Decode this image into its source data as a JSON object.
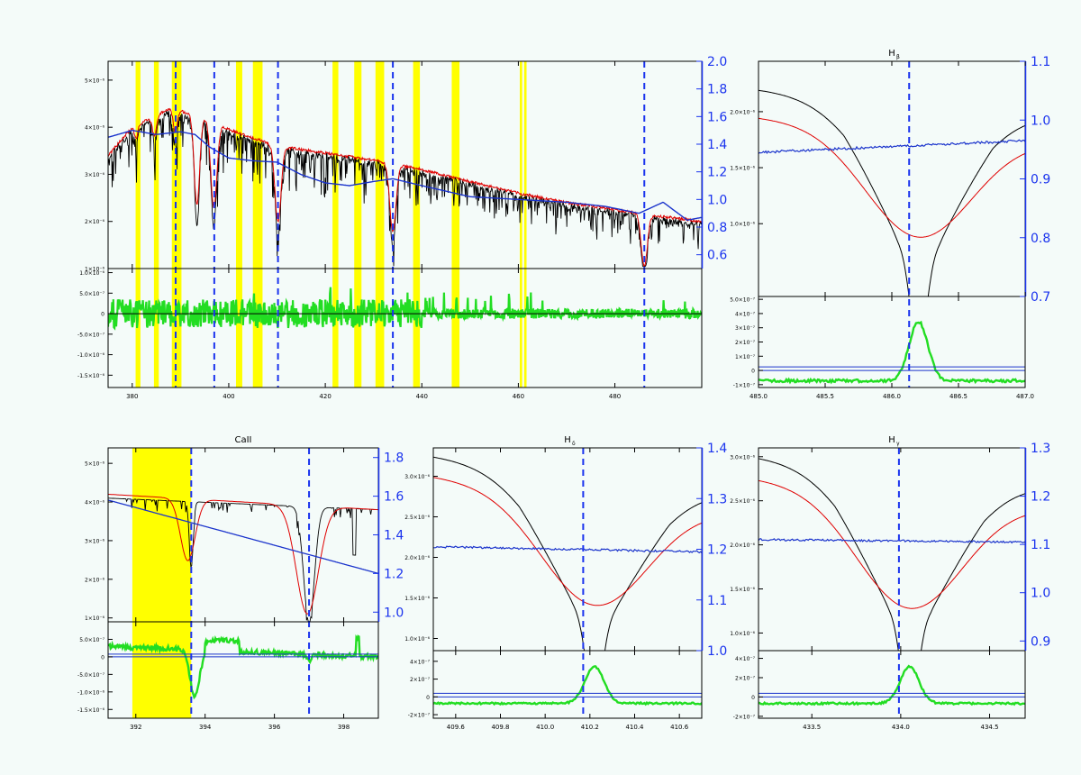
{
  "figure": {
    "background": "#f4fbf9",
    "colors": {
      "observed": "#000000",
      "model": "#e00000",
      "ratio": "#1a33cc",
      "residual": "#22dd22",
      "band": "#ffff00",
      "marker": "#1a33ee",
      "axis": "#000000"
    }
  },
  "chart_data": [
    {
      "id": "overview",
      "type": "line",
      "title": "",
      "xlim": [
        375,
        498
      ],
      "xticks": [
        "380",
        "400",
        "420",
        "440",
        "460",
        "480"
      ],
      "xtick_values": [
        380,
        400,
        420,
        440,
        460,
        480
      ],
      "top": {
        "ylim": [
          1e-06,
          5.4e-06
        ],
        "yticks": [
          "5×10⁻⁶",
          "4×10⁻⁶",
          "3×10⁻⁶",
          "2×10⁻⁶",
          "1×10⁻⁶"
        ],
        "ytick_values": [
          5e-06,
          4e-06,
          3e-06,
          2e-06,
          1e-06
        ],
        "ylim_right": [
          0.5,
          2.0
        ],
        "yticks_right": [
          "2.0",
          "1.8",
          "1.6",
          "1.4",
          "1.2",
          "1.0",
          "0.8",
          "0.6"
        ],
        "ytick_values_right": [
          2.0,
          1.8,
          1.6,
          1.4,
          1.2,
          1.0,
          0.8,
          0.6
        ]
      },
      "bottom": {
        "ylim": [
          -1.8e-06,
          1.1e-06
        ],
        "yticks": [
          "1.0×10⁻⁶",
          "5.0×10⁻⁷",
          "0",
          "-5.0×10⁻⁷",
          "-1.0×10⁻⁶",
          "-1.5×10⁻⁶"
        ],
        "ytick_values": [
          1e-06,
          5e-07,
          0,
          -5e-07,
          -1e-06,
          -1.5e-06
        ]
      },
      "bands": [
        [
          380.7,
          381.7
        ],
        [
          384.5,
          385.5
        ],
        [
          388.2,
          390.2
        ],
        [
          401.5,
          402.8
        ],
        [
          405,
          407
        ],
        [
          421.5,
          422.7
        ],
        [
          426,
          427.5
        ],
        [
          430.4,
          432.2
        ],
        [
          438.2,
          439.6
        ],
        [
          446.2,
          447.8
        ],
        [
          460.3,
          460.8
        ],
        [
          461.2,
          461.7
        ]
      ],
      "markers": [
        389.0,
        397.0,
        410.2,
        434.0,
        486.1
      ],
      "lines": [
        {
          "x0": 380.8,
          "depth": 2.8e-07,
          "width": 0.5
        },
        {
          "x0": 384.6,
          "depth": 4e-07,
          "width": 0.6
        },
        {
          "x0": 388.9,
          "depth": 4.8e-07,
          "width": 0.6
        },
        {
          "x0": 393.4,
          "depth": 1.9e-06,
          "width": 0.8
        },
        {
          "x0": 396.9,
          "depth": 1.8e-06,
          "width": 0.9
        },
        {
          "x0": 410.2,
          "depth": 1.6e-06,
          "width": 0.9
        },
        {
          "x0": 434.0,
          "depth": 1.45e-06,
          "width": 0.9
        },
        {
          "x0": 486.1,
          "depth": 1.1e-06,
          "width": 0.9
        }
      ],
      "continuum_pts": [
        [
          375,
          3.4e-06
        ],
        [
          380,
          4e-06
        ],
        [
          388,
          4.4e-06
        ],
        [
          395,
          4.2e-06
        ],
        [
          400,
          3.95e-06
        ],
        [
          410,
          3.6e-06
        ],
        [
          420,
          3.45e-06
        ],
        [
          430,
          3.3e-06
        ],
        [
          440,
          3.1e-06
        ],
        [
          450,
          2.85e-06
        ],
        [
          460,
          2.6e-06
        ],
        [
          470,
          2.4e-06
        ],
        [
          480,
          2.25e-06
        ],
        [
          490,
          2.1e-06
        ],
        [
          498,
          2e-06
        ]
      ],
      "ratio_pts": [
        [
          375,
          1.45
        ],
        [
          380,
          1.5
        ],
        [
          385,
          1.47
        ],
        [
          390,
          1.49
        ],
        [
          393,
          1.47
        ],
        [
          396,
          1.38
        ],
        [
          400,
          1.3
        ],
        [
          405,
          1.28
        ],
        [
          410,
          1.27
        ],
        [
          415,
          1.18
        ],
        [
          420,
          1.12
        ],
        [
          425,
          1.1
        ],
        [
          430,
          1.13
        ],
        [
          434,
          1.15
        ],
        [
          440,
          1.1
        ],
        [
          450,
          1.02
        ],
        [
          460,
          1.0
        ],
        [
          470,
          0.98
        ],
        [
          478,
          0.95
        ],
        [
          485,
          0.9
        ],
        [
          490,
          0.98
        ],
        [
          495,
          0.85
        ],
        [
          498,
          0.87
        ]
      ]
    },
    {
      "id": "hbeta",
      "type": "line",
      "title": "H",
      "title_sub": "β",
      "xlim": [
        485.0,
        487.0
      ],
      "xticks": [
        "485.0",
        "485.5",
        "486.0",
        "486.5",
        "487.0"
      ],
      "xtick_values": [
        485.0,
        485.5,
        486.0,
        486.5,
        487.0
      ],
      "top": {
        "ylim": [
          3.5e-07,
          2.45e-06
        ],
        "yticks": [
          "2.0×10⁻⁶",
          "1.5×10⁻⁶",
          "1.0×10⁻⁶"
        ],
        "ytick_values": [
          2e-06,
          1.5e-06,
          1e-06
        ],
        "ylim_right": [
          0.7,
          1.1
        ],
        "yticks_right": [
          "1.1",
          "1.0",
          "0.9",
          "0.8",
          "0.7"
        ],
        "ytick_values_right": [
          1.1,
          1.0,
          0.9,
          0.8,
          0.7
        ]
      },
      "bottom": {
        "ylim": [
          -1.2e-07,
          5.2e-07
        ],
        "yticks": [
          "5.0×10⁻⁷",
          "4×10⁻⁷",
          "3×10⁻⁷",
          "2×10⁻⁷",
          "1×10⁻⁷",
          "0",
          "-1×10⁻⁷"
        ],
        "ytick_values": [
          5e-07,
          4e-07,
          3e-07,
          2e-07,
          1e-07,
          0,
          -1e-07
        ]
      },
      "markers": [
        486.13
      ],
      "line_center": 486.2,
      "continuum": [
        1.95e-06,
        1.75e-06
      ],
      "obs_depth": 1.5e-06,
      "obs_width": 0.28,
      "model_depth": 9.5e-07,
      "model_width": 0.55,
      "ratio": [
        0.945,
        0.965
      ]
    },
    {
      "id": "caii",
      "type": "line",
      "title": "CaII",
      "xlim": [
        391.2,
        399.0
      ],
      "xticks": [
        "392",
        "394",
        "396",
        "398"
      ],
      "xtick_values": [
        392,
        394,
        396,
        398
      ],
      "top": {
        "ylim": [
          9e-07,
          5.4e-06
        ],
        "yticks": [
          "5×10⁻⁶",
          "4×10⁻⁶",
          "3×10⁻⁶",
          "2×10⁻⁶",
          "1×10⁻⁶"
        ],
        "ytick_values": [
          5e-06,
          4e-06,
          3e-06,
          2e-06,
          1e-06
        ],
        "ylim_right": [
          0.95,
          1.85
        ],
        "yticks_right": [
          "1.8",
          "1.6",
          "1.4",
          "1.2",
          "1.0"
        ],
        "ytick_values_right": [
          1.8,
          1.6,
          1.4,
          1.2,
          1.0
        ]
      },
      "bottom": {
        "ylim": [
          -1.75e-06,
          1e-06
        ],
        "yticks": [
          "5.0×10⁻⁷",
          "0",
          "-5.0×10⁻⁷",
          "-1.0×10⁻⁶",
          "-1.5×10⁻⁶"
        ],
        "ytick_values": [
          5e-07,
          0,
          -5e-07,
          -1e-06,
          -1.5e-06
        ]
      },
      "bands": [
        [
          391.9,
          393.6
        ]
      ],
      "markers": [
        393.6,
        397.0
      ],
      "ratio": [
        1.58,
        1.2
      ]
    },
    {
      "id": "hdelta",
      "type": "line",
      "title": "H",
      "title_sub": "δ",
      "xlim": [
        409.5,
        410.7
      ],
      "xticks": [
        "409.6",
        "409.8",
        "410.0",
        "410.2",
        "410.4",
        "410.6"
      ],
      "xtick_values": [
        409.6,
        409.8,
        410.0,
        410.2,
        410.4,
        410.6
      ],
      "top": {
        "ylim": [
          8.5e-07,
          3.35e-06
        ],
        "yticks": [
          "3.0×10⁻⁶",
          "2.5×10⁻⁶",
          "2.0×10⁻⁶",
          "1.5×10⁻⁶",
          "1.0×10⁻⁶"
        ],
        "ytick_values": [
          3e-06,
          2.5e-06,
          2e-06,
          1.5e-06,
          1e-06
        ],
        "ylim_right": [
          1.0,
          1.4
        ],
        "yticks_right": [
          "1.4",
          "1.3",
          "1.2",
          "1.1",
          "1.0"
        ],
        "ytick_values_right": [
          1.4,
          1.3,
          1.2,
          1.1,
          1.0
        ]
      },
      "bottom": {
        "ylim": [
          -2.4e-07,
          5.2e-07
        ],
        "yticks": [
          "4×10⁻⁷",
          "2×10⁻⁷",
          "0",
          "-2×10⁻⁷"
        ],
        "ytick_values": [
          4e-07,
          2e-07,
          0,
          -2e-07
        ]
      },
      "markers": [
        410.17
      ],
      "line_center": 410.22,
      "continuum": [
        3e-06,
        2.6e-06
      ],
      "obs_depth": 1.9e-06,
      "obs_width": 0.22,
      "model_depth": 1.35e-06,
      "model_width": 0.35,
      "ratio": [
        1.205,
        1.195
      ]
    },
    {
      "id": "hgamma",
      "type": "line",
      "title": "H",
      "title_sub": "γ",
      "xlim": [
        433.2,
        434.7
      ],
      "xticks": [
        "433.5",
        "434.0",
        "434.5"
      ],
      "xtick_values": [
        433.5,
        434.0,
        434.5
      ],
      "top": {
        "ylim": [
          8e-07,
          3.1e-06
        ],
        "yticks": [
          "3.0×10⁻⁶",
          "2.5×10⁻⁶",
          "2.0×10⁻⁶",
          "1.5×10⁻⁶",
          "1.0×10⁻⁶"
        ],
        "ytick_values": [
          3e-06,
          2.5e-06,
          2e-06,
          1.5e-06,
          1e-06
        ],
        "ylim_right": [
          0.88,
          1.3
        ],
        "yticks_right": [
          "1.3",
          "1.2",
          "1.1",
          "1.0",
          "0.9"
        ],
        "ytick_values_right": [
          1.3,
          1.2,
          1.1,
          1.0,
          0.9
        ]
      },
      "bottom": {
        "ylim": [
          -2.2e-07,
          4.8e-07
        ],
        "yticks": [
          "4×10⁻⁷",
          "2×10⁻⁷",
          "0",
          "-2×10⁻⁷"
        ],
        "ytick_values": [
          4e-07,
          2e-07,
          0,
          -2e-07
        ]
      },
      "markers": [
        433.99
      ],
      "line_center": 434.05,
      "continuum": [
        2.75e-06,
        2.45e-06
      ],
      "obs_depth": 1.95e-06,
      "obs_width": 0.25,
      "model_depth": 1.3e-06,
      "model_width": 0.4,
      "ratio": [
        1.11,
        1.105
      ]
    }
  ]
}
